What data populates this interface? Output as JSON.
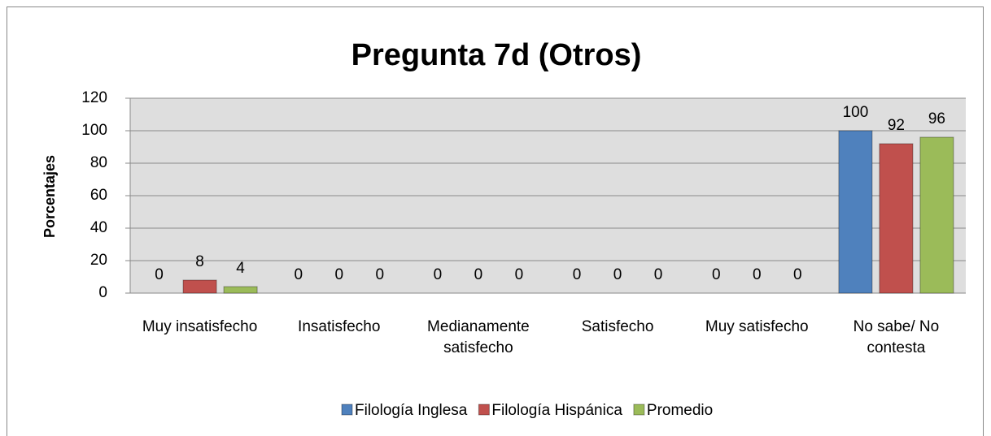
{
  "chart_data": {
    "type": "bar",
    "title": "Pregunta 7d (Otros)",
    "y_label": "Porcentajes",
    "categories": [
      "Muy insatisfecho",
      "Insatisfecho",
      "Medianamente satisfecho",
      "Satisfecho",
      "Muy satisfecho",
      "No sabe/ No contesta"
    ],
    "series": [
      {
        "name": "Filología Inglesa",
        "color": "#4f81bd",
        "values": [
          0,
          0,
          0,
          0,
          0,
          100
        ]
      },
      {
        "name": "Filología Hispánica",
        "color": "#c0504d",
        "values": [
          8,
          0,
          0,
          0,
          0,
          92
        ]
      },
      {
        "name": "Promedio",
        "color": "#9bbb59",
        "values": [
          4,
          0,
          0,
          0,
          0,
          96
        ]
      }
    ],
    "ylim": [
      0,
      120
    ],
    "yticks": [
      0,
      20,
      40,
      60,
      80,
      100,
      120
    ],
    "grid": true,
    "legend": "bottom"
  }
}
